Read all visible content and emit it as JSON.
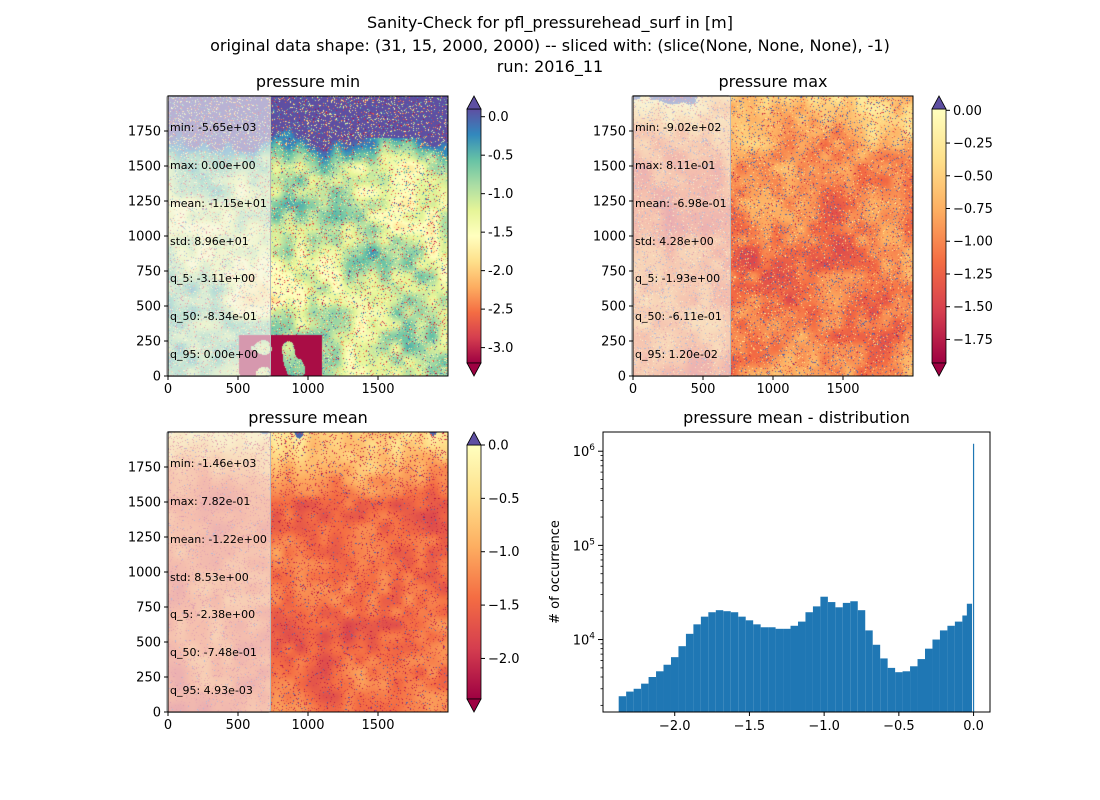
{
  "figure": {
    "title_line1": "Sanity-Check for pfl_pressurehead_surf in [m]",
    "title_line2": "original data shape: (31, 15, 2000, 2000) -- sliced with: (slice(None, None, None), -1)",
    "title_line3": "run: 2016_11"
  },
  "panels": [
    {
      "title": "pressure min",
      "stats": [
        "min: -5.65e+03",
        "max: 0.00e+00",
        "mean: -1.15e+01",
        "std: 8.96e+01",
        "q_5: -3.11e+00",
        "q_50: -8.34e-01",
        "q_95: 0.00e+00"
      ],
      "x_ticks": [
        "0",
        "500",
        "1000",
        "1500"
      ],
      "y_ticks": [
        "0",
        "250",
        "500",
        "750",
        "1000",
        "1250",
        "1500",
        "1750"
      ],
      "colorbar_ticks": [
        "0.0",
        "-0.5",
        "-1.0",
        "-1.5",
        "-2.0",
        "-2.5",
        "-3.0"
      ],
      "colorbar_range": [
        -3.2,
        0.1
      ],
      "extend": "both"
    },
    {
      "title": "pressure max",
      "stats": [
        "min: -9.02e+02",
        "max: 8.11e-01",
        "mean: -6.98e-01",
        "std: 4.28e+00",
        "q_5: -1.93e+00",
        "q_50: -6.11e-01",
        "q_95: 1.20e-02"
      ],
      "x_ticks": [
        "0",
        "500",
        "1000",
        "1500"
      ],
      "y_ticks": [
        "0",
        "250",
        "500",
        "750",
        "1000",
        "1250",
        "1500",
        "1750"
      ],
      "colorbar_ticks": [
        "0.00",
        "−0.25",
        "−0.50",
        "−0.75",
        "−1.00",
        "−1.25",
        "−1.50",
        "−1.75"
      ],
      "colorbar_range": [
        -1.93,
        0.01
      ],
      "extend": "both"
    },
    {
      "title": "pressure mean",
      "stats": [
        "min: -1.46e+03",
        "max: 7.82e-01",
        "mean: -1.22e+00",
        "std: 8.53e+00",
        "q_5: -2.38e+00",
        "q_50: -7.48e-01",
        "q_95: 4.93e-03"
      ],
      "x_ticks": [
        "0",
        "500",
        "1000",
        "1500"
      ],
      "y_ticks": [
        "0",
        "250",
        "500",
        "750",
        "1000",
        "1250",
        "1500",
        "1750"
      ],
      "colorbar_ticks": [
        "0.0",
        "−0.5",
        "−1.0",
        "−1.5",
        "−2.0"
      ],
      "colorbar_range": [
        -2.38,
        0.0
      ],
      "extend": "both"
    }
  ],
  "chart_data": {
    "type": "bar",
    "title": "pressure mean - distribution",
    "xlabel": "",
    "ylabel": "# of occurrence",
    "yscale": "log",
    "xlim": [
      -2.48,
      0.11
    ],
    "ylim": [
      1700,
      1600000
    ],
    "x_tick_labels": [
      "−2.0",
      "−1.5",
      "−1.0",
      "−0.5",
      "0.0"
    ],
    "y_tick_labels": [
      "10^4",
      "10^5",
      "10^6"
    ],
    "color": "#1f77b4",
    "x": [
      -2.35,
      -2.3,
      -2.25,
      -2.2,
      -2.15,
      -2.1,
      -2.05,
      -2.0,
      -1.95,
      -1.9,
      -1.85,
      -1.8,
      -1.75,
      -1.7,
      -1.65,
      -1.6,
      -1.55,
      -1.5,
      -1.45,
      -1.4,
      -1.35,
      -1.3,
      -1.25,
      -1.2,
      -1.15,
      -1.1,
      -1.05,
      -1.0,
      -0.95,
      -0.9,
      -0.85,
      -0.8,
      -0.75,
      -0.7,
      -0.65,
      -0.6,
      -0.55,
      -0.5,
      -0.45,
      -0.4,
      -0.35,
      -0.3,
      -0.25,
      -0.2,
      -0.15,
      -0.1,
      -0.05,
      -0.02,
      0.0
    ],
    "values": [
      2500,
      2800,
      3000,
      3400,
      4000,
      4600,
      5400,
      6500,
      8500,
      11500,
      14500,
      17500,
      19500,
      20500,
      20000,
      19500,
      17500,
      16000,
      14500,
      13500,
      13500,
      13000,
      13000,
      14000,
      15500,
      19500,
      22500,
      28500,
      25000,
      22000,
      24500,
      25500,
      20500,
      12500,
      8800,
      6300,
      5000,
      4500,
      4600,
      5200,
      6200,
      8000,
      10000,
      12500,
      14000,
      15500,
      18000,
      24000,
      1200000
    ]
  }
}
